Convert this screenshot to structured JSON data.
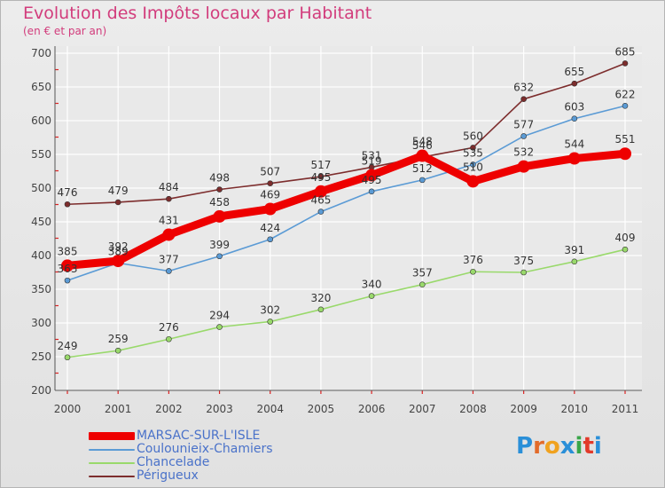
{
  "title": "Evolution des Impôts locaux par Habitant",
  "subtitle": "(en € et par an)",
  "logo": {
    "letters": [
      "P",
      "r",
      "o",
      "x",
      "i",
      "t",
      "i"
    ],
    "colors": [
      "#2a8fd8",
      "#e26b2a",
      "#f0a21f",
      "#2a8fd8",
      "#3aa64a",
      "#e23a2a",
      "#2a8fd8"
    ]
  },
  "chart_data": {
    "type": "line",
    "title": "Evolution des Impôts locaux par Habitant",
    "subtitle": "(en € et par an)",
    "xlabel": "",
    "ylabel": "",
    "categories": [
      "2000",
      "2001",
      "2002",
      "2003",
      "2004",
      "2005",
      "2006",
      "2007",
      "2008",
      "2009",
      "2010",
      "2011"
    ],
    "ylim": [
      200,
      700
    ],
    "yticks": [
      "200",
      "250",
      "300",
      "350",
      "400",
      "450",
      "500",
      "550",
      "600",
      "650",
      "700"
    ],
    "grid": true,
    "series": [
      {
        "name": "MARSAC-SUR-L'ISLE",
        "color": "#ee0000",
        "values": [
          385,
          392,
          431,
          458,
          469,
          495,
          519,
          548,
          510,
          532,
          544,
          551
        ],
        "labels": [
          "385",
          "392",
          "431",
          "458",
          "469",
          "495",
          "519",
          "548",
          "510",
          "532",
          "544",
          "551"
        ]
      },
      {
        "name": "Coulounieix-Chamiers",
        "color": "#5b9bd5",
        "values": [
          363,
          389,
          377,
          399,
          424,
          465,
          495,
          512,
          535,
          577,
          603,
          622
        ],
        "labels": [
          "363",
          "389",
          "377",
          "399",
          "424",
          "465",
          "495",
          "512",
          "535",
          "577",
          "603",
          "622"
        ]
      },
      {
        "name": "Chancelade",
        "color": "#99d96b",
        "values": [
          249,
          259,
          276,
          294,
          302,
          320,
          340,
          357,
          376,
          375,
          391,
          409
        ],
        "labels": [
          "249",
          "259",
          "276",
          "294",
          "302",
          "320",
          "340",
          "357",
          "376",
          "375",
          "391",
          "409"
        ]
      },
      {
        "name": "Périgueux",
        "color": "#7d2d2d",
        "values": [
          476,
          479,
          484,
          498,
          507,
          517,
          531,
          546,
          560,
          632,
          655,
          685
        ],
        "labels": [
          "476",
          "479",
          "484",
          "498",
          "507",
          "517",
          "531",
          "546",
          "560",
          "632",
          "655",
          "685"
        ]
      }
    ]
  }
}
